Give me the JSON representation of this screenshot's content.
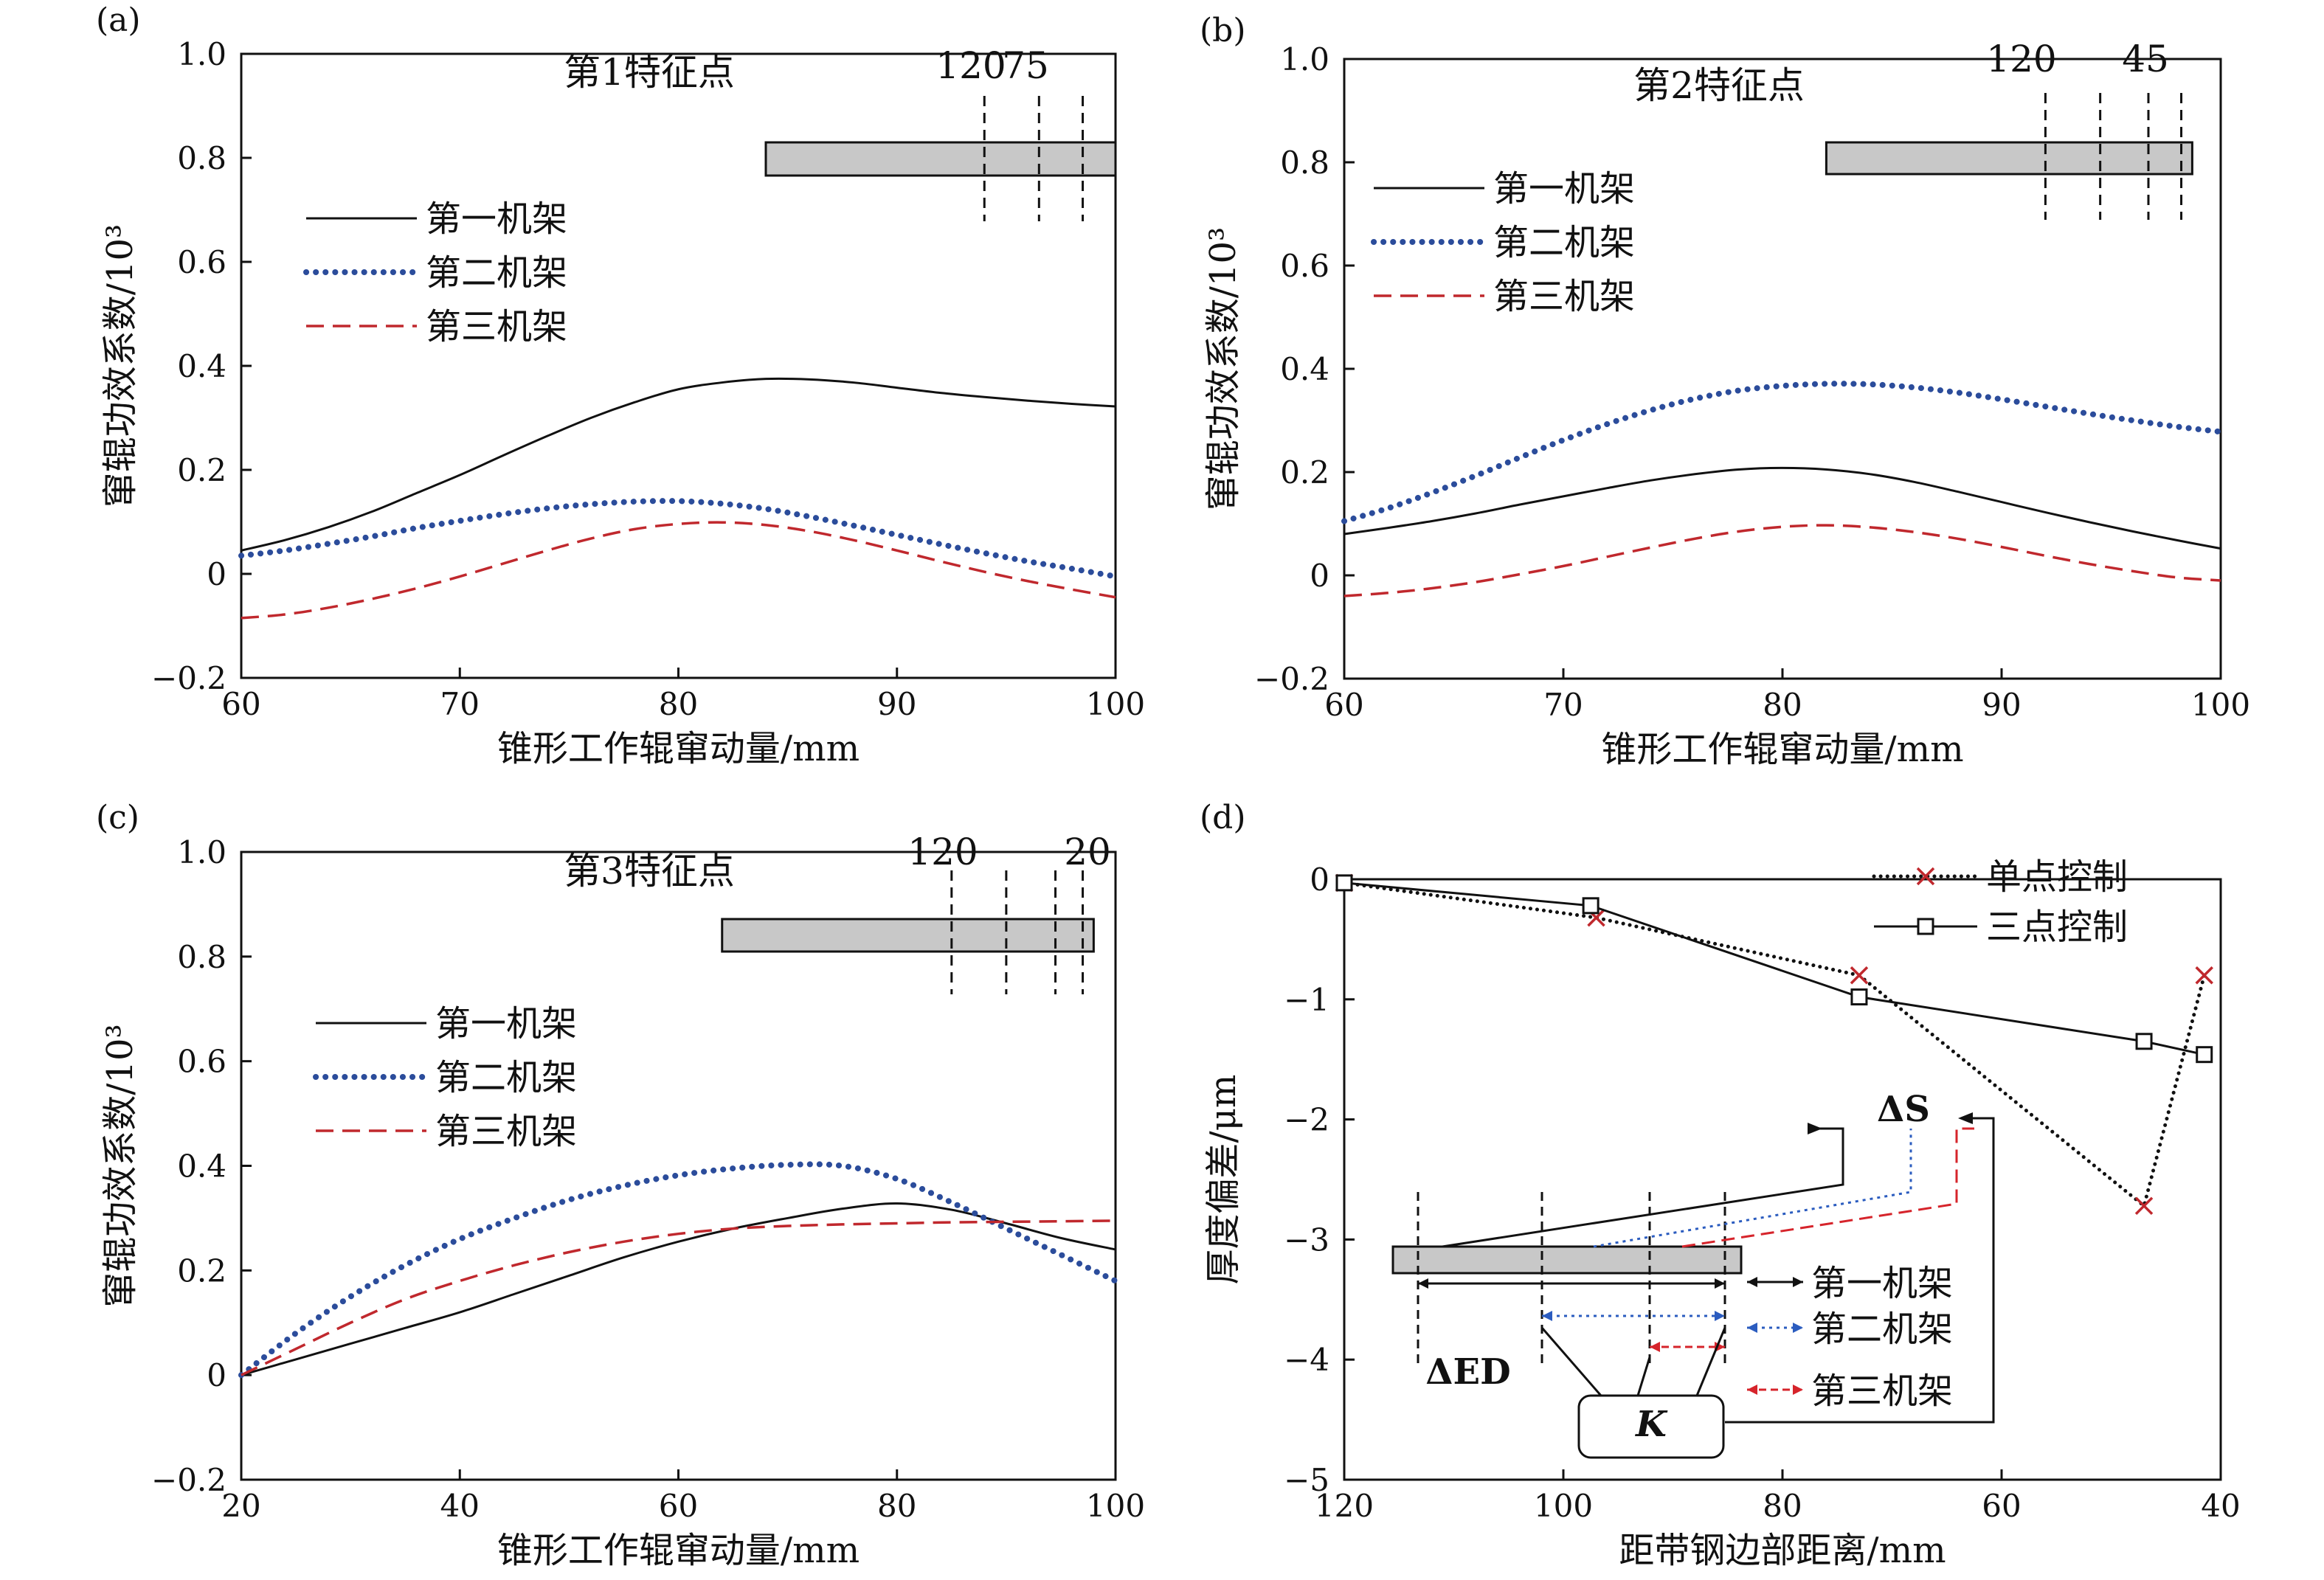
{
  "chart_data": [
    {
      "panel": "(a)",
      "type": "line",
      "annotation": "第1特征点",
      "xlabel": "锥形工作辊窜动量/mm",
      "ylabel": "窜辊功效系数/10³",
      "xlim": [
        60,
        100
      ],
      "ylim": [
        -0.2,
        1.0
      ],
      "xticks": [
        "60",
        "70",
        "80",
        "90",
        "100"
      ],
      "yticks": [
        "−0.2",
        "0",
        "0.2",
        "0.4",
        "0.6",
        "0.8",
        "1.0"
      ],
      "strip_marks": [
        "120",
        "75"
      ],
      "strip_range": [
        84,
        100
      ],
      "dashed_lines_x": [
        94,
        96.5,
        98.5,
        100
      ],
      "legend": [
        "第一机架",
        "第二机架",
        "第三机架"
      ],
      "x": [
        60,
        62,
        64,
        66,
        68,
        70,
        72,
        74,
        76,
        78,
        80,
        82,
        84,
        86,
        88,
        90,
        92,
        94,
        96,
        98,
        100
      ],
      "series": [
        {
          "name": "第一机架",
          "style": "solid",
          "color": "#111111",
          "values": [
            0.045,
            0.065,
            0.09,
            0.12,
            0.155,
            0.19,
            0.228,
            0.265,
            0.3,
            0.33,
            0.355,
            0.368,
            0.375,
            0.374,
            0.368,
            0.358,
            0.348,
            0.34,
            0.333,
            0.327,
            0.322
          ]
        },
        {
          "name": "第二机架",
          "style": "dotted",
          "color": "#2b4c9b",
          "values": [
            0.035,
            0.045,
            0.058,
            0.072,
            0.088,
            0.102,
            0.115,
            0.126,
            0.134,
            0.139,
            0.14,
            0.135,
            0.125,
            0.11,
            0.093,
            0.075,
            0.057,
            0.04,
            0.024,
            0.01,
            -0.005
          ]
        },
        {
          "name": "第三机架",
          "style": "dashed",
          "color": "#c0282d",
          "values": [
            -0.085,
            -0.078,
            -0.065,
            -0.048,
            -0.028,
            -0.005,
            0.02,
            0.045,
            0.068,
            0.086,
            0.096,
            0.099,
            0.094,
            0.082,
            0.065,
            0.045,
            0.024,
            0.004,
            -0.014,
            -0.03,
            -0.045
          ]
        }
      ]
    },
    {
      "panel": "(b)",
      "type": "line",
      "annotation": "第2特征点",
      "xlabel": "锥形工作辊窜动量/mm",
      "ylabel": "窜辊功效系数/10³",
      "xlim": [
        60,
        100
      ],
      "ylim": [
        -0.2,
        1.0
      ],
      "xticks": [
        "60",
        "70",
        "80",
        "90",
        "100"
      ],
      "yticks": [
        "−0.2",
        "0",
        "0.2",
        "0.4",
        "0.6",
        "0.8",
        "1.0"
      ],
      "strip_marks": [
        "120",
        "45"
      ],
      "strip_range": [
        82,
        98.7
      ],
      "dashed_lines_x": [
        92,
        94.5,
        96.7,
        98.2
      ],
      "legend": [
        "第一机架",
        "第二机架",
        "第三机架"
      ],
      "x": [
        60,
        62,
        64,
        66,
        68,
        70,
        72,
        74,
        76,
        78,
        80,
        82,
        84,
        86,
        88,
        90,
        92,
        94,
        96,
        98,
        100
      ],
      "series": [
        {
          "name": "第一机架",
          "style": "solid",
          "color": "#111111",
          "values": [
            0.08,
            0.092,
            0.105,
            0.12,
            0.137,
            0.153,
            0.169,
            0.184,
            0.196,
            0.205,
            0.208,
            0.205,
            0.196,
            0.181,
            0.162,
            0.142,
            0.122,
            0.103,
            0.085,
            0.068,
            0.052
          ]
        },
        {
          "name": "第二机架",
          "style": "dotted",
          "color": "#2b4c9b",
          "values": [
            0.105,
            0.13,
            0.16,
            0.193,
            0.228,
            0.262,
            0.293,
            0.32,
            0.342,
            0.358,
            0.367,
            0.371,
            0.37,
            0.364,
            0.354,
            0.341,
            0.327,
            0.313,
            0.3,
            0.288,
            0.278
          ]
        },
        {
          "name": "第三机架",
          "style": "dashed",
          "color": "#c0282d",
          "values": [
            -0.04,
            -0.034,
            -0.025,
            -0.013,
            0.002,
            0.018,
            0.036,
            0.054,
            0.071,
            0.085,
            0.094,
            0.097,
            0.093,
            0.084,
            0.071,
            0.055,
            0.038,
            0.022,
            0.008,
            -0.004,
            -0.01
          ]
        }
      ]
    },
    {
      "panel": "(c)",
      "type": "line",
      "annotation": "第3特征点",
      "xlabel": "锥形工作辊窜动量/mm",
      "ylabel": "窜辊功效系数/10³",
      "xlim": [
        20,
        100
      ],
      "ylim": [
        -0.2,
        1.0
      ],
      "xticks": [
        "20",
        "40",
        "60",
        "80",
        "100"
      ],
      "yticks": [
        "−0.2",
        "0",
        "0.2",
        "0.4",
        "0.6",
        "0.8",
        "1.0"
      ],
      "strip_marks": [
        "120",
        "20"
      ],
      "strip_range": [
        64,
        98
      ],
      "dashed_lines_x": [
        85,
        90,
        94.5,
        97
      ],
      "legend": [
        "第一机架",
        "第二机架",
        "第三机架"
      ],
      "x": [
        20,
        25,
        30,
        35,
        40,
        45,
        50,
        55,
        60,
        65,
        70,
        75,
        80,
        85,
        90,
        95,
        100
      ],
      "series": [
        {
          "name": "第一机架",
          "style": "solid",
          "color": "#111111",
          "values": [
            0.0,
            0.03,
            0.06,
            0.09,
            0.12,
            0.155,
            0.19,
            0.225,
            0.255,
            0.28,
            0.3,
            0.318,
            0.328,
            0.316,
            0.29,
            0.262,
            0.24
          ]
        },
        {
          "name": "第二机架",
          "style": "dotted",
          "color": "#2b4c9b",
          "values": [
            0.0,
            0.08,
            0.15,
            0.21,
            0.26,
            0.3,
            0.335,
            0.362,
            0.382,
            0.395,
            0.402,
            0.4,
            0.375,
            0.33,
            0.28,
            0.23,
            0.18
          ]
        },
        {
          "name": "第三机架",
          "style": "dashed",
          "color": "#c0282d",
          "values": [
            0.0,
            0.05,
            0.1,
            0.145,
            0.18,
            0.21,
            0.235,
            0.255,
            0.27,
            0.28,
            0.285,
            0.288,
            0.29,
            0.292,
            0.293,
            0.294,
            0.295
          ]
        }
      ]
    },
    {
      "panel": "(d)",
      "type": "line",
      "xlabel": "距带钢边部距离/mm",
      "ylabel": "厚度偏差/μm",
      "xlim": [
        120,
        40
      ],
      "ylim": [
        -5,
        0
      ],
      "xticks": [
        "120",
        "100",
        "80",
        "60",
        "40"
      ],
      "yticks": [
        "−5",
        "−4",
        "−3",
        "−2",
        "−1",
        "0"
      ],
      "legend": [
        "单点控制",
        "三点控制"
      ],
      "series": [
        {
          "name": "单点控制",
          "style": "dotted",
          "marker": "x",
          "color": "#111111",
          "marker_color": "#c0282d",
          "x": [
            120,
            97,
            73,
            47,
            41.5
          ],
          "y": [
            -0.03,
            -0.32,
            -0.8,
            -2.72,
            -0.8
          ]
        },
        {
          "name": "三点控制",
          "style": "solid",
          "marker": "square",
          "color": "#111111",
          "x": [
            120,
            97.5,
            73,
            47,
            41.5
          ],
          "y": [
            -0.03,
            -0.22,
            -0.98,
            -1.35,
            -1.46
          ]
        }
      ],
      "inset": {
        "delta_s": "ΔS",
        "delta_ed": "ΔED",
        "k": "K",
        "stands": [
          "第一机架",
          "第二机架",
          "第三机架"
        ]
      }
    }
  ]
}
